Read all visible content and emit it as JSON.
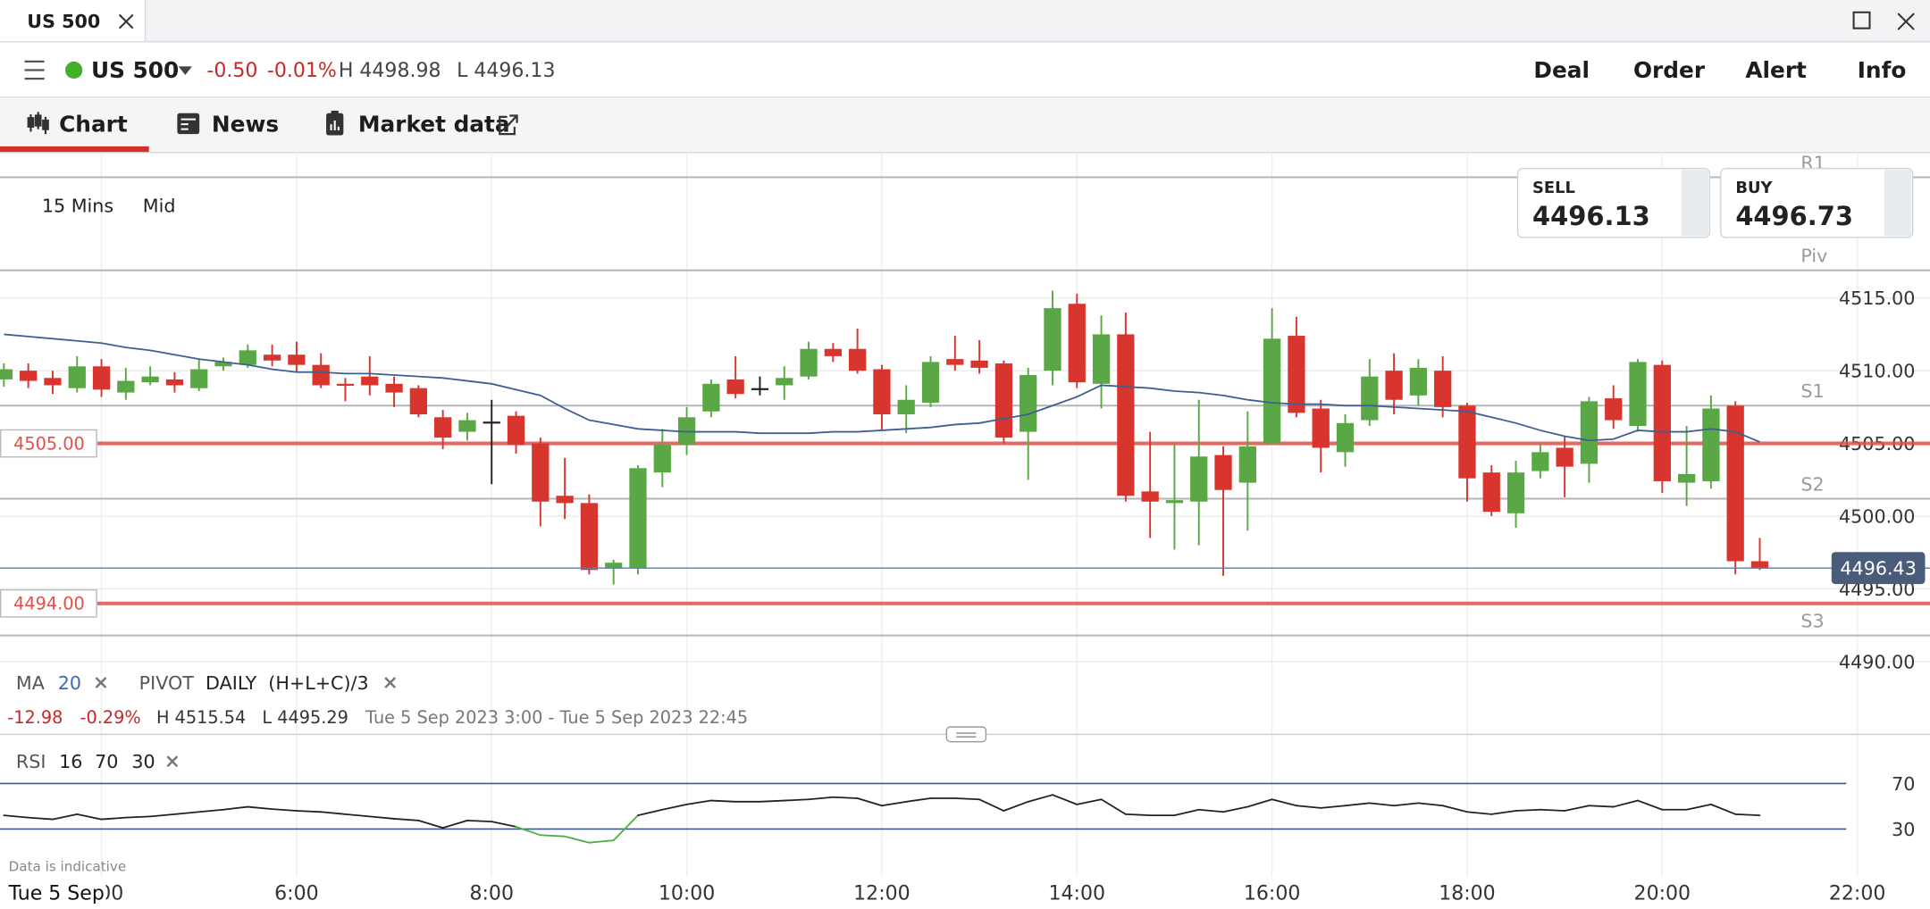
{
  "window": {
    "tab": "US 500"
  },
  "toolbar": {
    "market": "US 500",
    "change": "-0.50",
    "change_pct": "-0.01%",
    "high": "H 4498.98",
    "low": "L 4496.13",
    "actions": [
      "Deal",
      "Order",
      "Alert",
      "Info"
    ]
  },
  "tabs": [
    "Chart",
    "News",
    "Market data"
  ],
  "chart_settings": [
    "15 Mins",
    "Mid"
  ],
  "quote": {
    "sell_label": "SELL",
    "sell": "4496.13",
    "buy_label": "BUY",
    "buy": "4496.73"
  },
  "indicators": {
    "ma_label": "MA",
    "ma_period": 20,
    "pivot_label": "PIVOT",
    "pivot_period": "DAILY",
    "pivot_formula": "(H+L+C)/3"
  },
  "stats": {
    "change": "-12.98",
    "change_pct": "-0.29%",
    "high": "H 4515.54",
    "low": "L 4495.29",
    "range": "Tue 5 Sep 2023 3:00 - Tue 5 Sep 2023 22:45"
  },
  "rsi_settings": {
    "label": "RSI",
    "period": 16,
    "upper": 70,
    "lower": 30
  },
  "footer": {
    "note": "Data is indicative",
    "date": "Tue 5 Sep"
  },
  "chart_data": [
    {
      "type": "candlestick",
      "x": [
        3,
        3.25,
        3.5,
        3.75,
        4,
        4.25,
        4.5,
        4.75,
        5,
        5.25,
        5.5,
        5.75,
        6,
        6.25,
        6.5,
        6.75,
        7,
        7.25,
        7.5,
        7.75,
        8,
        8.25,
        8.5,
        8.75,
        9,
        9.25,
        9.5,
        9.75,
        10,
        10.25,
        10.5,
        10.75,
        11,
        11.25,
        11.5,
        11.75,
        12,
        12.25,
        12.5,
        12.75,
        13,
        13.25,
        13.5,
        13.75,
        14,
        14.25,
        14.5,
        14.75,
        15,
        15.25,
        15.5,
        15.75,
        16,
        16.25,
        16.5,
        16.75,
        17,
        17.25,
        17.5,
        17.75,
        18,
        18.25,
        18.5,
        18.75,
        19,
        19.25,
        19.5,
        19.75,
        20,
        20.25,
        20.5,
        20.75,
        21
      ],
      "open": [
        4509.4,
        4510.0,
        4509.5,
        4508.8,
        4510.3,
        4508.5,
        4509.2,
        4509.4,
        4508.8,
        4510.3,
        4510.4,
        4511.1,
        4511.1,
        4510.4,
        4509.1,
        4509.6,
        4509.1,
        4508.8,
        4506.8,
        4505.8,
        4506.5,
        4506.9,
        4505.0,
        4501.4,
        4500.9,
        4496.4,
        4496.4,
        4503.0,
        4504.9,
        4507.2,
        4509.4,
        4508.8,
        4509.0,
        4509.6,
        4511.5,
        4511.5,
        4510.1,
        4507.0,
        4507.8,
        4510.8,
        4510.7,
        4510.5,
        4505.8,
        4510.0,
        4514.6,
        4509.1,
        4512.5,
        4501.7,
        4500.9,
        4501.0,
        4504.2,
        4502.3,
        4505.0,
        4512.4,
        4507.4,
        4504.4,
        4506.6,
        4510.0,
        4508.3,
        4510.0,
        4507.6,
        4503.0,
        4500.2,
        4503.1,
        4504.7,
        4503.6,
        4508.1,
        4506.2,
        4510.4,
        4502.3,
        4502.4,
        4507.6,
        4496.9
      ],
      "high": [
        4510.5,
        4510.5,
        4510.0,
        4511.0,
        4510.8,
        4510.2,
        4510.3,
        4509.9,
        4510.8,
        4510.9,
        4511.8,
        4511.8,
        4512.0,
        4511.2,
        4509.5,
        4511.0,
        4509.6,
        4509.0,
        4507.3,
        4507.1,
        4508.0,
        4507.2,
        4505.4,
        4504.0,
        4501.5,
        4497.0,
        4503.5,
        4506.0,
        4507.5,
        4509.4,
        4511.0,
        4509.6,
        4510.3,
        4512.0,
        4511.9,
        4512.9,
        4510.4,
        4509.0,
        4511.0,
        4512.4,
        4512.1,
        4510.7,
        4510.2,
        4515.5,
        4515.3,
        4513.8,
        4514.0,
        4505.8,
        4505.0,
        4508.0,
        4504.8,
        4507.2,
        4514.3,
        4513.7,
        4508.0,
        4507.0,
        4510.8,
        4511.2,
        4510.8,
        4511.0,
        4507.8,
        4503.5,
        4503.8,
        4505.0,
        4505.5,
        4508.2,
        4509.0,
        4510.8,
        4510.7,
        4506.2,
        4508.3,
        4507.9,
        4498.5
      ],
      "low": [
        4508.9,
        4508.8,
        4508.4,
        4508.5,
        4508.2,
        4508.0,
        4509.0,
        4508.5,
        4508.6,
        4510.0,
        4510.2,
        4510.3,
        4509.9,
        4508.8,
        4507.9,
        4508.3,
        4507.5,
        4506.8,
        4504.6,
        4505.2,
        4502.2,
        4504.3,
        4499.3,
        4499.8,
        4496.0,
        4495.3,
        4496.0,
        4502.0,
        4504.2,
        4506.8,
        4508.1,
        4508.3,
        4508.0,
        4509.4,
        4510.6,
        4509.8,
        4505.9,
        4505.7,
        4507.5,
        4510.0,
        4509.8,
        4505.0,
        4502.5,
        4509.0,
        4508.8,
        4507.4,
        4501.0,
        4498.5,
        4497.7,
        4498.0,
        4495.9,
        4499.0,
        4505.0,
        4506.8,
        4503.0,
        4503.4,
        4506.2,
        4507.0,
        4507.6,
        4506.8,
        4501.0,
        4500.0,
        4499.2,
        4502.6,
        4501.3,
        4502.3,
        4506.0,
        4505.8,
        4501.6,
        4500.7,
        4501.9,
        4496.0,
        4496.3
      ],
      "close": [
        4510.1,
        4509.3,
        4509.0,
        4510.3,
        4508.7,
        4509.3,
        4509.6,
        4509.0,
        4510.1,
        4510.6,
        4511.4,
        4510.7,
        4510.4,
        4509.0,
        4509.0,
        4509.0,
        4508.5,
        4507.0,
        4505.4,
        4506.6,
        4506.5,
        4504.9,
        4501.0,
        4500.9,
        4496.3,
        4496.8,
        4503.3,
        4504.9,
        4506.8,
        4509.1,
        4508.4,
        4508.8,
        4509.5,
        4511.5,
        4511.0,
        4510.0,
        4507.0,
        4508.0,
        4510.6,
        4510.4,
        4510.2,
        4505.4,
        4509.7,
        4514.3,
        4509.2,
        4512.5,
        4501.4,
        4501.0,
        4501.1,
        4504.1,
        4501.8,
        4504.8,
        4512.2,
        4507.1,
        4504.7,
        4506.4,
        4509.6,
        4508.0,
        4510.2,
        4507.5,
        4502.6,
        4500.3,
        4503.0,
        4504.4,
        4503.4,
        4507.9,
        4506.6,
        4510.6,
        4502.4,
        4502.9,
        4507.4,
        4496.9,
        4496.4
      ],
      "colors": {
        "up": "#5aa845",
        "down": "#d7352d",
        "flat": "#222222"
      },
      "moving_average": {
        "color": "#3d5f93",
        "values": [
          4512.5,
          4512.35,
          4512.2,
          4512.05,
          4511.9,
          4511.6,
          4511.4,
          4511.1,
          4510.8,
          4510.6,
          4510.4,
          4510.1,
          4509.9,
          4509.9,
          4509.8,
          4509.8,
          4509.7,
          4509.6,
          4509.5,
          4509.3,
          4509.1,
          4508.7,
          4508.3,
          4507.4,
          4506.6,
          4506.3,
          4506.0,
          4505.9,
          4505.8,
          4505.8,
          4505.8,
          4505.7,
          4505.7,
          4505.7,
          4505.8,
          4505.8,
          4505.9,
          4506.0,
          4506.1,
          4506.3,
          4506.4,
          4506.7,
          4507.0,
          4507.6,
          4508.2,
          4509.0,
          4508.9,
          4508.8,
          4508.6,
          4508.5,
          4508.3,
          4508.0,
          4507.8,
          4507.7,
          4507.7,
          4507.6,
          4507.6,
          4507.5,
          4507.4,
          4507.3,
          4507.2,
          4506.8,
          4506.4,
          4505.9,
          4505.5,
          4505.2,
          4505.3,
          4505.9,
          4505.8,
          4505.8,
          4506.0,
          4505.8,
          4505.1
        ]
      },
      "pivots": [
        {
          "label": "R1",
          "value": 4523.3
        },
        {
          "label": "Piv",
          "value": 4516.9
        },
        {
          "label": "S1",
          "value": 4507.6
        },
        {
          "label": "S2",
          "value": 4501.2
        },
        {
          "label": "S3",
          "value": 4491.8
        }
      ],
      "levels": [
        {
          "value": 4505,
          "label": "4505.00",
          "color": "#e0514a"
        },
        {
          "value": 4494,
          "label": "4494.00",
          "color": "#e0514a"
        }
      ],
      "last_price": {
        "value": 4496.43,
        "label": "4496.43",
        "color": "#4b5b7a"
      },
      "ylim": [
        4485,
        4525
      ],
      "yticks": [
        {
          "value": 4490,
          "label": "4490.00"
        },
        {
          "value": 4495,
          "label": "4495.00"
        },
        {
          "value": 4500,
          "label": "4500.00"
        },
        {
          "value": 4505,
          "label": "4505.00"
        },
        {
          "value": 4510,
          "label": "4510.00"
        },
        {
          "value": 4515,
          "label": "4515.00"
        }
      ],
      "xlim": [
        2.96,
        22.745
      ],
      "xticks": [
        {
          "value": 4,
          "label": "4:00"
        },
        {
          "value": 6,
          "label": "6:00"
        },
        {
          "value": 8,
          "label": "8:00"
        },
        {
          "value": 10,
          "label": "10:00"
        },
        {
          "value": 12,
          "label": "12:00"
        },
        {
          "value": 14,
          "label": "14:00"
        },
        {
          "value": 16,
          "label": "16:00"
        },
        {
          "value": 18,
          "label": "18:00"
        },
        {
          "value": 20,
          "label": "20:00"
        },
        {
          "value": 22,
          "label": "22:00"
        }
      ],
      "grid": true
    },
    {
      "type": "line",
      "x": [
        3,
        3.25,
        3.5,
        3.75,
        4,
        4.25,
        4.5,
        4.75,
        5,
        5.25,
        5.5,
        5.75,
        6,
        6.25,
        6.5,
        6.75,
        7,
        7.25,
        7.5,
        7.75,
        8,
        8.25,
        8.5,
        8.75,
        9,
        9.25,
        9.5,
        9.75,
        10,
        10.25,
        10.5,
        10.75,
        11,
        11.25,
        11.5,
        11.75,
        12,
        12.25,
        12.5,
        12.75,
        13,
        13.25,
        13.5,
        13.75,
        14,
        14.25,
        14.5,
        14.75,
        15,
        15.25,
        15.5,
        15.75,
        16,
        16.25,
        16.5,
        16.75,
        17,
        17.25,
        17.5,
        17.75,
        18,
        18.25,
        18.5,
        18.75,
        19,
        19.25,
        19.5,
        19.75,
        20,
        20.25,
        20.5,
        20.75,
        21
      ],
      "values": [
        42,
        40,
        38.5,
        43,
        38.5,
        40,
        41,
        43,
        45,
        47,
        49.5,
        47.5,
        46,
        45,
        43,
        41,
        39,
        37.5,
        31,
        37.5,
        36.5,
        32,
        24.6,
        23.5,
        18,
        20,
        42,
        47,
        51.6,
        55,
        54,
        54,
        55,
        56,
        58,
        57,
        50.5,
        54,
        57,
        57,
        56,
        46,
        54,
        60,
        51.6,
        56,
        43,
        42,
        42,
        47,
        45,
        49.5,
        56,
        50.5,
        48.5,
        50.5,
        52.8,
        50.5,
        52.8,
        50.5,
        45,
        43,
        46,
        47,
        46,
        50.5,
        49.5,
        55,
        47,
        47,
        51.6,
        43,
        42
      ],
      "colors": {
        "line": "#222222",
        "oversold": "#4caf3d",
        "levels": "#3a5a8c"
      },
      "ylim": [
        -12.2,
        113.2
      ],
      "yticks": [
        30,
        70
      ],
      "xlim": [
        2.96,
        22.745
      ]
    }
  ]
}
